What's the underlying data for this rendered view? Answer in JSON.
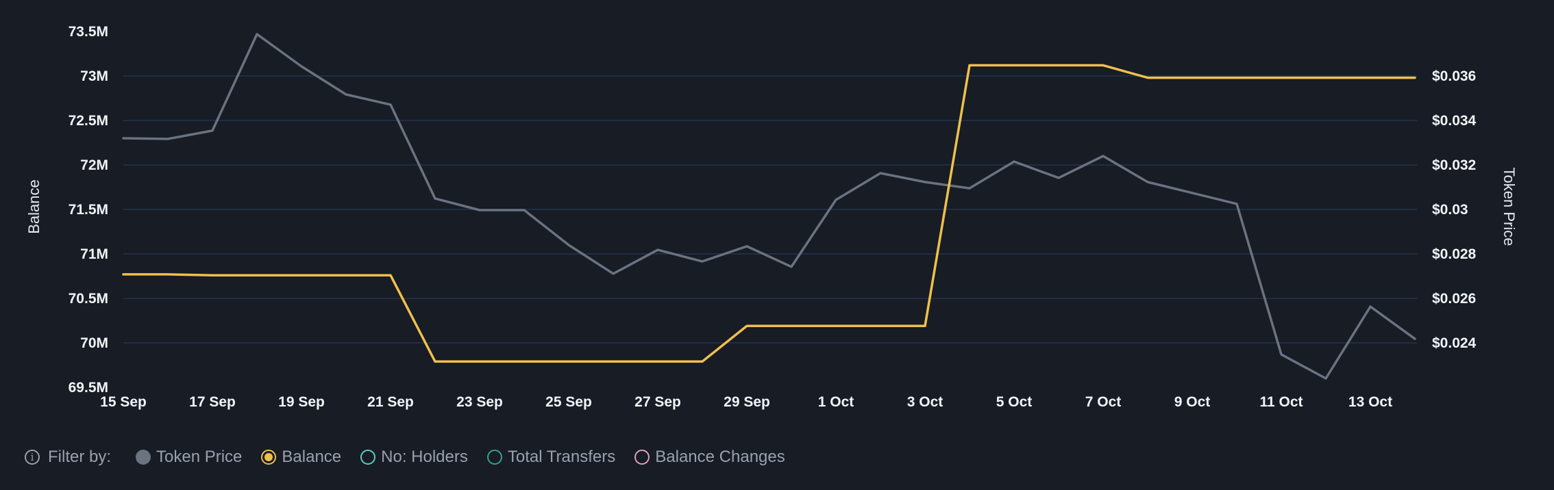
{
  "chart_data": {
    "type": "line",
    "title": "",
    "x": [
      "15 Sep",
      "16 Sep",
      "17 Sep",
      "18 Sep",
      "19 Sep",
      "20 Sep",
      "21 Sep",
      "22 Sep",
      "23 Sep",
      "24 Sep",
      "25 Sep",
      "26 Sep",
      "27 Sep",
      "28 Sep",
      "29 Sep",
      "30 Sep",
      "1 Oct",
      "2 Oct",
      "3 Oct",
      "4 Oct",
      "5 Oct",
      "6 Oct",
      "7 Oct",
      "8 Oct",
      "9 Oct",
      "10 Oct",
      "11 Oct",
      "12 Oct",
      "13 Oct",
      "14 Oct"
    ],
    "x_tick_labels": [
      "15 Sep",
      "17 Sep",
      "19 Sep",
      "21 Sep",
      "23 Sep",
      "25 Sep",
      "27 Sep",
      "29 Sep",
      "1 Oct",
      "3 Oct",
      "5 Oct",
      "7 Oct",
      "9 Oct",
      "11 Oct",
      "13 Oct"
    ],
    "ylabel": "Balance",
    "ylabel_right": "Token Price",
    "ylim": [
      69.5,
      73.5
    ],
    "ylim_right": [
      0.0222,
      0.0382
    ],
    "y_ticks_left": [
      "73.5M",
      "73M",
      "72.5M",
      "72M",
      "71.5M",
      "71M",
      "70.5M",
      "70M",
      "69.5M"
    ],
    "y_ticks_right": [
      "$0.036",
      "$0.034",
      "$0.032",
      "$0.03",
      "$0.028",
      "$0.026",
      "$0.024"
    ],
    "grid": true,
    "legend_position": "bottom",
    "series": [
      {
        "name": "Token Price",
        "axis": "right",
        "color": "#6b7280",
        "values": [
          0.0332,
          0.03317,
          0.03354,
          0.03788,
          0.03643,
          0.03517,
          0.03471,
          0.03049,
          0.02997,
          0.02997,
          0.0284,
          0.02711,
          0.02818,
          0.02766,
          0.02834,
          0.02742,
          0.03043,
          0.03163,
          0.03123,
          0.03095,
          0.03215,
          0.03142,
          0.0324,
          0.03123,
          0.03074,
          0.03025,
          0.02348,
          0.0224,
          0.02563,
          0.02418
        ]
      },
      {
        "name": "Balance",
        "axis": "left",
        "color": "#f0c04a",
        "values": [
          70.77,
          70.77,
          70.76,
          70.76,
          70.76,
          70.76,
          70.76,
          69.79,
          69.79,
          69.79,
          69.79,
          69.79,
          69.79,
          69.79,
          70.19,
          70.19,
          70.19,
          70.19,
          70.19,
          73.12,
          73.12,
          73.12,
          73.12,
          72.98,
          72.98,
          72.98,
          72.98,
          72.98,
          72.98,
          72.98
        ]
      }
    ]
  },
  "legend": {
    "filter_label": "Filter by:",
    "items": [
      {
        "label": "Token Price",
        "state": "filled",
        "color": "#6b7280"
      },
      {
        "label": "Balance",
        "state": "selected",
        "color": "#f0c04a"
      },
      {
        "label": "No: Holders",
        "state": "off",
        "color": "#5ccdbf"
      },
      {
        "label": "Total Transfers",
        "state": "off",
        "color": "#3a9f8f"
      },
      {
        "label": "Balance Changes",
        "state": "off",
        "color": "#e89bc3"
      }
    ]
  },
  "colors": {
    "background": "#171c25",
    "grid": "#23344e",
    "token_price": "#6b7280",
    "balance": "#f0c04a"
  }
}
